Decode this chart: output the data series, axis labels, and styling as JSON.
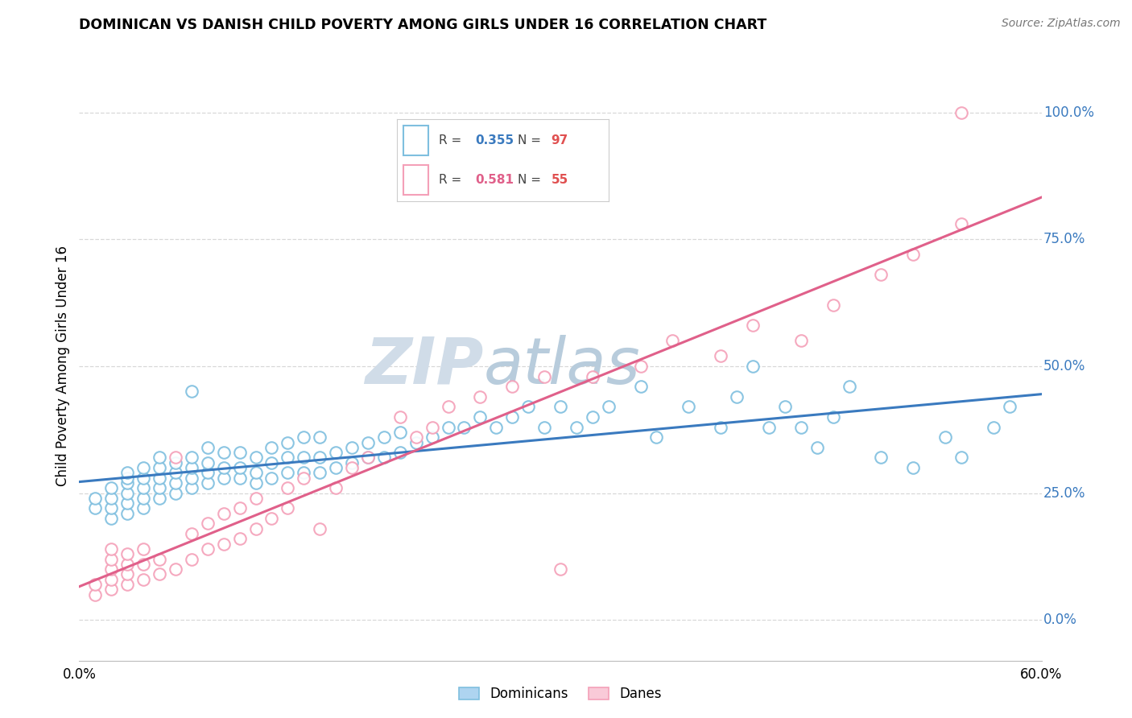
{
  "title": "DOMINICAN VS DANISH CHILD POVERTY AMONG GIRLS UNDER 16 CORRELATION CHART",
  "source": "Source: ZipAtlas.com",
  "ylabel": "Child Poverty Among Girls Under 16",
  "ytick_values": [
    0.0,
    0.25,
    0.5,
    0.75,
    1.0
  ],
  "xlim": [
    0.0,
    0.6
  ],
  "ylim": [
    -0.08,
    1.08
  ],
  "blue_color": "#7fbfdf",
  "pink_color": "#f4a0b8",
  "blue_line_color": "#3a7abf",
  "pink_line_color": "#e0608a",
  "blue_R": 0.355,
  "blue_N": 97,
  "pink_R": 0.581,
  "pink_N": 55,
  "watermark_zip": "ZIP",
  "watermark_atlas": "atlas",
  "watermark_color_zip": "#d0dce8",
  "watermark_color_atlas": "#b8ccdc",
  "legend_blue_text_color": "#3a7abf",
  "legend_pink_text_color": "#e0608a",
  "legend_N_color": "#e05050",
  "grid_color": "#d8d8d8",
  "blue_scatter_x": [
    0.01,
    0.01,
    0.02,
    0.02,
    0.02,
    0.02,
    0.03,
    0.03,
    0.03,
    0.03,
    0.03,
    0.03,
    0.04,
    0.04,
    0.04,
    0.04,
    0.04,
    0.05,
    0.05,
    0.05,
    0.05,
    0.05,
    0.06,
    0.06,
    0.06,
    0.06,
    0.07,
    0.07,
    0.07,
    0.07,
    0.07,
    0.08,
    0.08,
    0.08,
    0.08,
    0.09,
    0.09,
    0.09,
    0.1,
    0.1,
    0.1,
    0.11,
    0.11,
    0.11,
    0.12,
    0.12,
    0.12,
    0.13,
    0.13,
    0.13,
    0.14,
    0.14,
    0.14,
    0.15,
    0.15,
    0.15,
    0.16,
    0.16,
    0.17,
    0.17,
    0.18,
    0.18,
    0.19,
    0.19,
    0.2,
    0.2,
    0.21,
    0.22,
    0.23,
    0.24,
    0.25,
    0.26,
    0.27,
    0.28,
    0.29,
    0.3,
    0.31,
    0.32,
    0.33,
    0.35,
    0.36,
    0.38,
    0.4,
    0.41,
    0.42,
    0.43,
    0.44,
    0.45,
    0.46,
    0.47,
    0.48,
    0.5,
    0.52,
    0.54,
    0.55,
    0.57,
    0.58
  ],
  "blue_scatter_y": [
    0.22,
    0.24,
    0.2,
    0.22,
    0.24,
    0.26,
    0.21,
    0.23,
    0.25,
    0.27,
    0.28,
    0.29,
    0.22,
    0.24,
    0.26,
    0.28,
    0.3,
    0.24,
    0.26,
    0.28,
    0.3,
    0.32,
    0.25,
    0.27,
    0.29,
    0.31,
    0.26,
    0.28,
    0.3,
    0.32,
    0.45,
    0.27,
    0.29,
    0.31,
    0.34,
    0.28,
    0.3,
    0.33,
    0.28,
    0.3,
    0.33,
    0.27,
    0.29,
    0.32,
    0.28,
    0.31,
    0.34,
    0.29,
    0.32,
    0.35,
    0.29,
    0.32,
    0.36,
    0.29,
    0.32,
    0.36,
    0.3,
    0.33,
    0.31,
    0.34,
    0.32,
    0.35,
    0.32,
    0.36,
    0.33,
    0.37,
    0.35,
    0.36,
    0.38,
    0.38,
    0.4,
    0.38,
    0.4,
    0.42,
    0.38,
    0.42,
    0.38,
    0.4,
    0.42,
    0.46,
    0.36,
    0.42,
    0.38,
    0.44,
    0.5,
    0.38,
    0.42,
    0.38,
    0.34,
    0.4,
    0.46,
    0.32,
    0.3,
    0.36,
    0.32,
    0.38,
    0.42
  ],
  "pink_scatter_x": [
    0.01,
    0.01,
    0.02,
    0.02,
    0.02,
    0.02,
    0.02,
    0.03,
    0.03,
    0.03,
    0.03,
    0.04,
    0.04,
    0.04,
    0.05,
    0.05,
    0.06,
    0.06,
    0.07,
    0.07,
    0.08,
    0.08,
    0.09,
    0.09,
    0.1,
    0.1,
    0.11,
    0.11,
    0.12,
    0.13,
    0.13,
    0.14,
    0.15,
    0.16,
    0.17,
    0.18,
    0.2,
    0.21,
    0.22,
    0.23,
    0.25,
    0.27,
    0.29,
    0.3,
    0.32,
    0.35,
    0.37,
    0.4,
    0.42,
    0.45,
    0.47,
    0.5,
    0.52,
    0.55,
    0.55
  ],
  "pink_scatter_y": [
    0.05,
    0.07,
    0.06,
    0.08,
    0.1,
    0.12,
    0.14,
    0.07,
    0.09,
    0.11,
    0.13,
    0.08,
    0.11,
    0.14,
    0.09,
    0.12,
    0.1,
    0.32,
    0.12,
    0.17,
    0.14,
    0.19,
    0.15,
    0.21,
    0.16,
    0.22,
    0.18,
    0.24,
    0.2,
    0.22,
    0.26,
    0.28,
    0.18,
    0.26,
    0.3,
    0.32,
    0.4,
    0.36,
    0.38,
    0.42,
    0.44,
    0.46,
    0.48,
    0.1,
    0.48,
    0.5,
    0.55,
    0.52,
    0.58,
    0.55,
    0.62,
    0.68,
    0.72,
    0.78,
    1.0
  ]
}
